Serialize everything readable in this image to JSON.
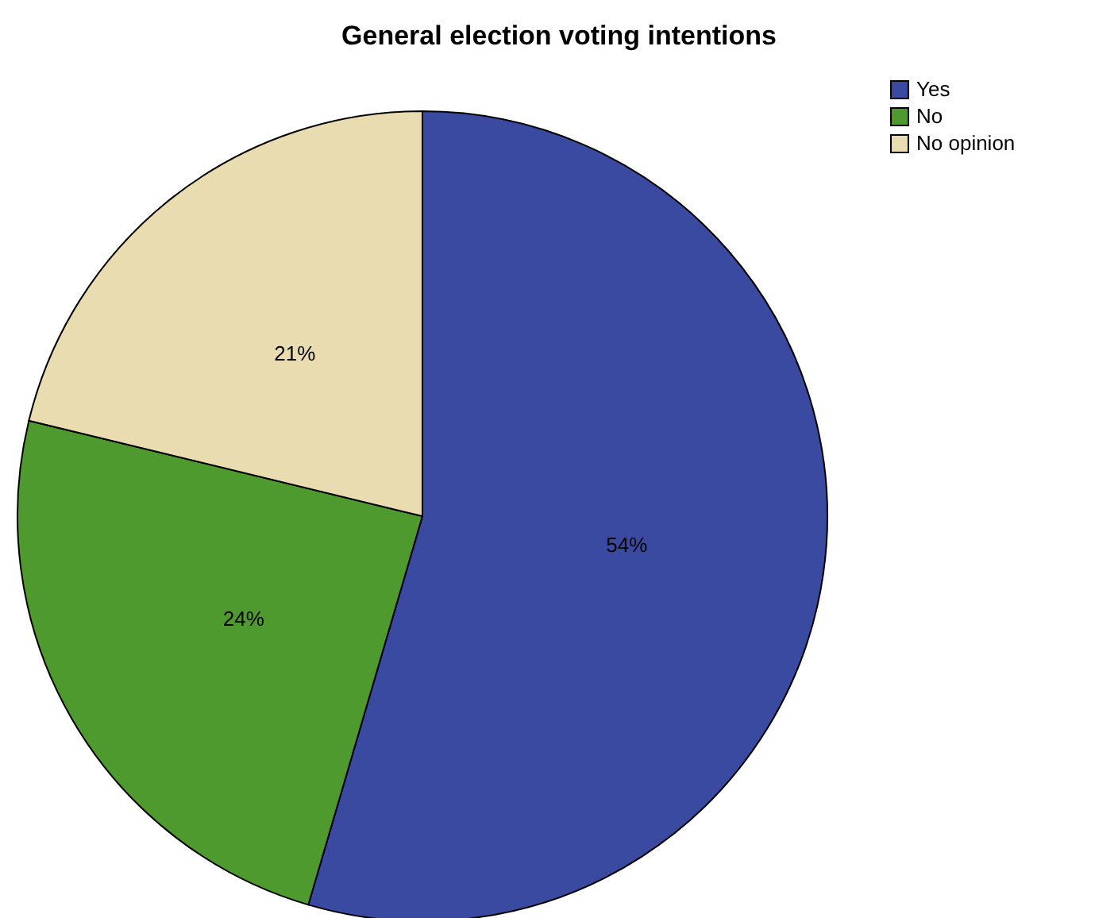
{
  "chart_data": {
    "type": "pie",
    "title": "General election voting intentions",
    "categories": [
      "Yes",
      "No",
      "No opinion"
    ],
    "values": [
      54,
      24,
      21
    ],
    "colors": [
      "#3a4aa0",
      "#4e9a2e",
      "#e8dcb0"
    ],
    "value_labels": [
      "54%",
      "24%",
      "21%"
    ],
    "legend": "top right"
  }
}
